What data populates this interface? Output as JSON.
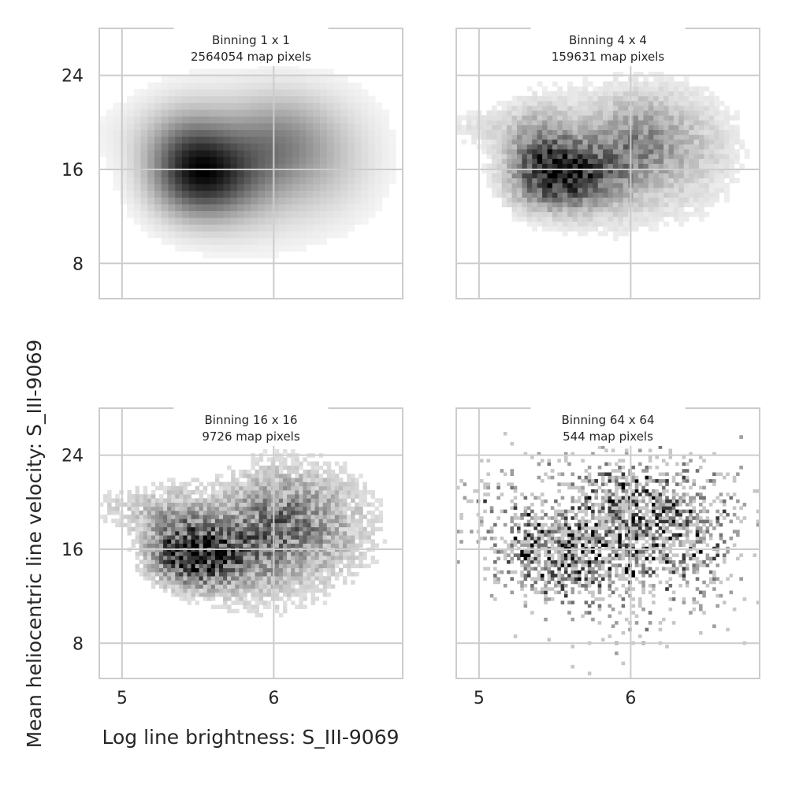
{
  "figure": {
    "xlabel": "Log line brightness: S_III-9069",
    "ylabel": "Mean heliocentric line velocity: S_III-9069"
  },
  "chart_data": {
    "type": "heatmap",
    "xlim": [
      4.85,
      6.85
    ],
    "ylim": [
      5.0,
      28.0
    ],
    "xticks": [
      5,
      6
    ],
    "yticks": [
      8,
      16,
      24
    ],
    "grid": true,
    "colormap": "grayscale (white = low density, black = high density)",
    "colors": {
      "grid": "#cccccc",
      "spine": "#cccccc",
      "text": "#262626",
      "background": "#ffffff"
    },
    "panels": [
      {
        "title_line1": "Binning 1 x 1",
        "title_line2": "2564054 map pixels",
        "binning": 1,
        "n_pixels": 2564054,
        "density_components": [
          {
            "x": 5.55,
            "y": 15.5,
            "sx": 0.22,
            "sy": 2.4,
            "w": 1.0
          },
          {
            "x": 5.42,
            "y": 17.0,
            "sx": 0.18,
            "sy": 2.8,
            "w": 0.55
          },
          {
            "x": 5.75,
            "y": 16.5,
            "sx": 0.28,
            "sy": 3.0,
            "w": 0.45
          },
          {
            "x": 6.05,
            "y": 18.5,
            "sx": 0.22,
            "sy": 2.6,
            "w": 0.45
          },
          {
            "x": 6.35,
            "y": 17.0,
            "sx": 0.25,
            "sy": 3.2,
            "w": 0.25
          },
          {
            "x": 5.95,
            "y": 14.0,
            "sx": 0.35,
            "sy": 3.5,
            "w": 0.12
          },
          {
            "x": 5.2,
            "y": 19.0,
            "sx": 0.3,
            "sy": 2.0,
            "w": 0.1
          },
          {
            "x": 5.9,
            "y": 21.5,
            "sx": 0.5,
            "sy": 2.5,
            "w": 0.06
          }
        ]
      },
      {
        "title_line1": "Binning 4 x 4",
        "title_line2": "159631 map pixels",
        "binning": 4,
        "n_pixels": 159631,
        "density_components": [
          {
            "x": 5.55,
            "y": 15.5,
            "sx": 0.2,
            "sy": 1.8,
            "w": 1.0
          },
          {
            "x": 5.4,
            "y": 17.5,
            "sx": 0.15,
            "sy": 2.5,
            "w": 0.45
          },
          {
            "x": 5.8,
            "y": 16.5,
            "sx": 0.25,
            "sy": 2.5,
            "w": 0.3
          },
          {
            "x": 6.05,
            "y": 18.5,
            "sx": 0.2,
            "sy": 2.5,
            "w": 0.4
          },
          {
            "x": 6.4,
            "y": 17.5,
            "sx": 0.22,
            "sy": 3.0,
            "w": 0.2
          },
          {
            "x": 5.05,
            "y": 19.5,
            "sx": 0.25,
            "sy": 1.2,
            "w": 0.12
          },
          {
            "x": 6.0,
            "y": 13.0,
            "sx": 0.3,
            "sy": 2.5,
            "w": 0.08
          },
          {
            "x": 5.9,
            "y": 21.5,
            "sx": 0.45,
            "sy": 2.5,
            "w": 0.06
          }
        ]
      },
      {
        "title_line1": "Binning 16 x 16",
        "title_line2": "9726 map pixels",
        "binning": 16,
        "n_pixels": 9726,
        "density_components": [
          {
            "x": 5.5,
            "y": 15.5,
            "sx": 0.18,
            "sy": 1.6,
            "w": 1.0
          },
          {
            "x": 5.35,
            "y": 17.5,
            "sx": 0.15,
            "sy": 2.2,
            "w": 0.35
          },
          {
            "x": 5.8,
            "y": 16.5,
            "sx": 0.25,
            "sy": 2.5,
            "w": 0.35
          },
          {
            "x": 6.05,
            "y": 18.5,
            "sx": 0.2,
            "sy": 2.5,
            "w": 0.4
          },
          {
            "x": 6.4,
            "y": 17.5,
            "sx": 0.22,
            "sy": 3.0,
            "w": 0.22
          },
          {
            "x": 5.05,
            "y": 19.5,
            "sx": 0.22,
            "sy": 1.2,
            "w": 0.15
          },
          {
            "x": 5.95,
            "y": 13.0,
            "sx": 0.3,
            "sy": 2.8,
            "w": 0.1
          },
          {
            "x": 6.0,
            "y": 21.5,
            "sx": 0.45,
            "sy": 2.5,
            "w": 0.08
          }
        ]
      },
      {
        "title_line1": "Binning 64 x 64",
        "title_line2": "544 map pixels",
        "binning": 64,
        "n_pixels": 544,
        "density_components": [
          {
            "x": 5.45,
            "y": 15.5,
            "sx": 0.2,
            "sy": 1.8,
            "w": 0.8
          },
          {
            "x": 5.8,
            "y": 17.0,
            "sx": 0.25,
            "sy": 2.5,
            "w": 0.5
          },
          {
            "x": 6.05,
            "y": 18.5,
            "sx": 0.2,
            "sy": 2.5,
            "w": 0.6
          },
          {
            "x": 6.4,
            "y": 17.5,
            "sx": 0.2,
            "sy": 3.0,
            "w": 0.35
          },
          {
            "x": 5.05,
            "y": 19.5,
            "sx": 0.25,
            "sy": 1.5,
            "w": 0.2
          },
          {
            "x": 5.95,
            "y": 13.0,
            "sx": 0.35,
            "sy": 3.0,
            "w": 0.15
          },
          {
            "x": 5.95,
            "y": 22.0,
            "sx": 0.4,
            "sy": 2.0,
            "w": 0.15
          }
        ]
      }
    ]
  }
}
